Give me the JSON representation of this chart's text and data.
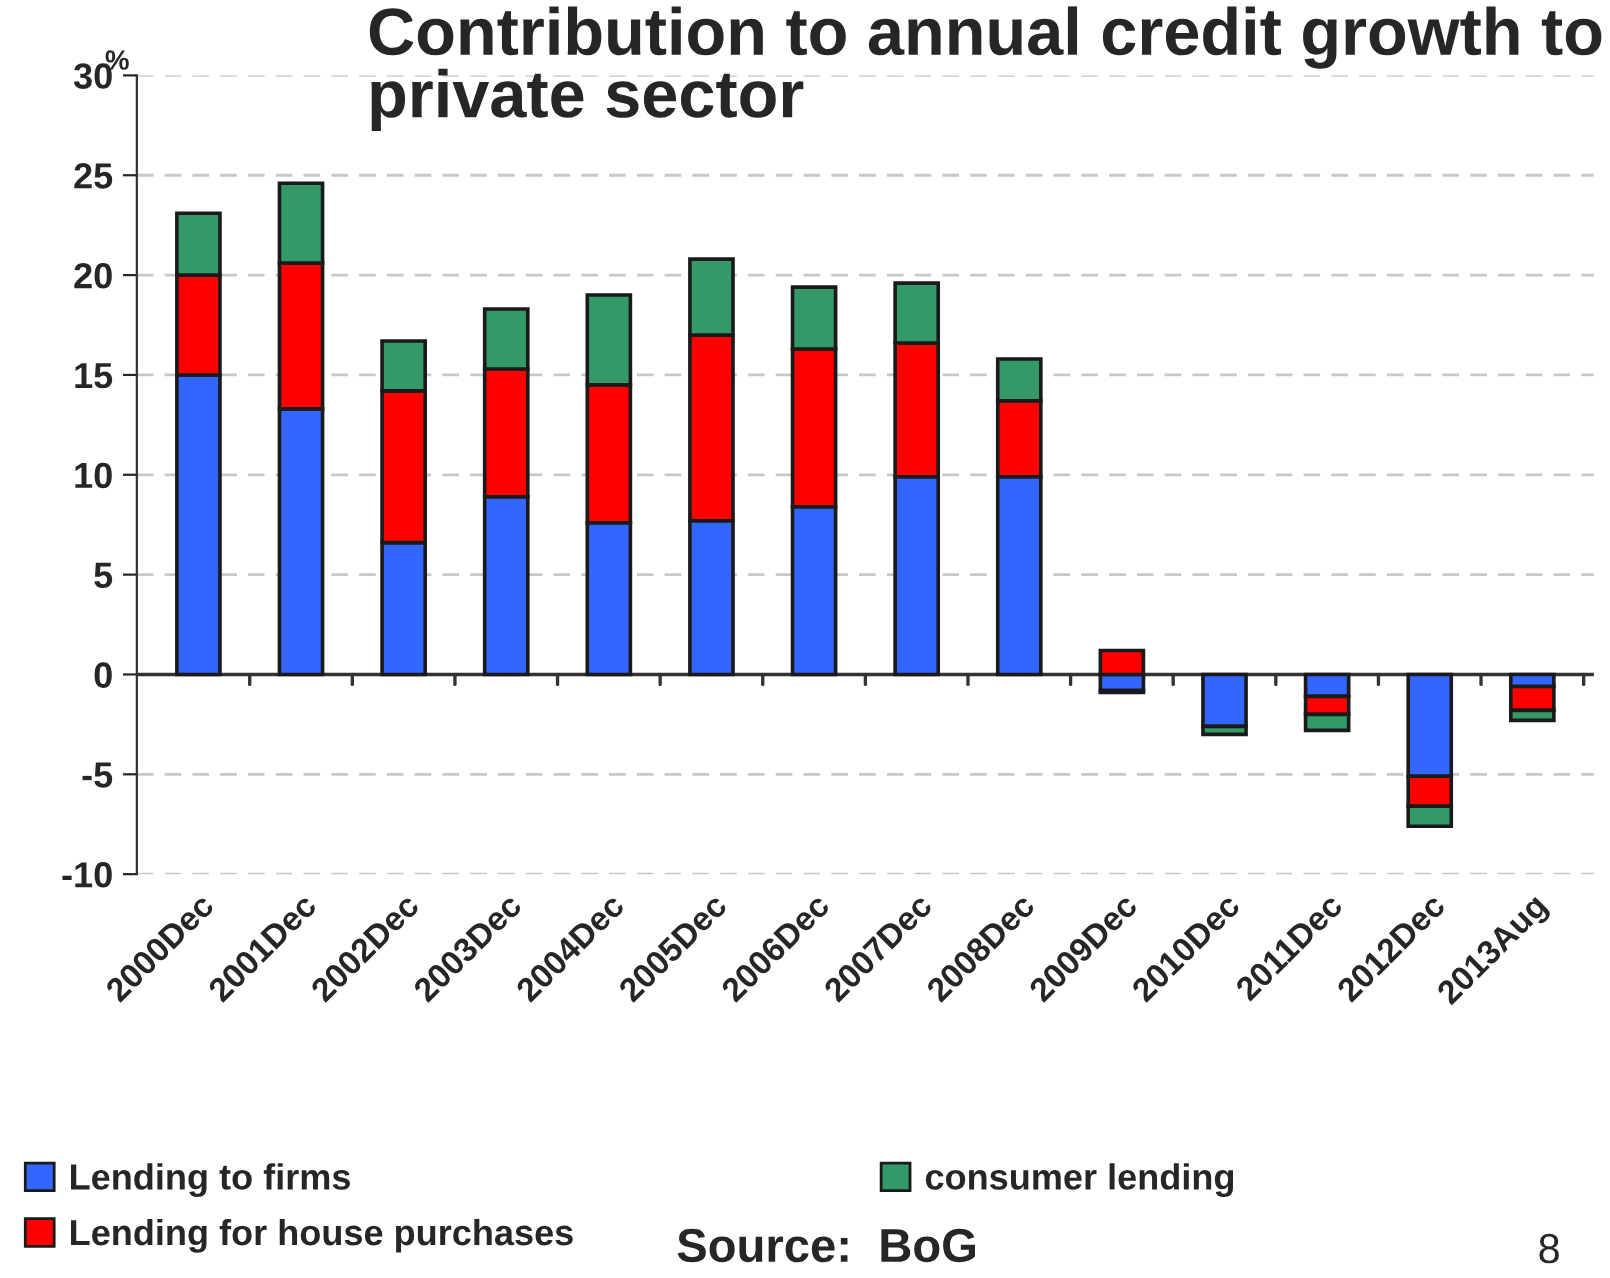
{
  "chart_data": {
    "type": "bar",
    "title": "Contribution to annual credit growth to private sector",
    "ylabel": "%",
    "categories": [
      "2000Dec",
      "2001Dec",
      "2002Dec",
      "2003Dec",
      "2004Dec",
      "2005Dec",
      "2006Dec",
      "2007Dec",
      "2008Dec",
      "2009Dec",
      "2010Dec",
      "2011Dec",
      "2012Dec",
      "2013Aug"
    ],
    "series": [
      {
        "name": "Lending to firms",
        "color": "#3366ff",
        "values": [
          15.0,
          13.3,
          6.6,
          8.9,
          7.6,
          7.7,
          8.4,
          9.9,
          9.9,
          -0.8,
          -2.6,
          -1.1,
          -5.1,
          -0.6
        ]
      },
      {
        "name": "Lending for house purchases",
        "color": "#ff0000",
        "values": [
          5.0,
          7.3,
          7.6,
          6.4,
          6.9,
          9.3,
          7.9,
          6.7,
          3.8,
          1.2,
          null,
          -0.9,
          -1.5,
          -1.2
        ]
      },
      {
        "name": "consumer lending",
        "color": "#339966",
        "values": [
          3.1,
          4.0,
          2.5,
          3.0,
          4.5,
          3.8,
          3.1,
          3.0,
          2.1,
          -0.1,
          -0.4,
          -0.8,
          -1.0,
          -0.5
        ]
      }
    ],
    "stacked": true,
    "ylim": [
      -10,
      30
    ],
    "yticks": [
      -10,
      -5,
      0,
      5,
      10,
      15,
      20,
      25,
      30
    ],
    "grid": "y",
    "legend": "bottom",
    "annotations": [
      "Source:  BoG",
      "8"
    ]
  }
}
